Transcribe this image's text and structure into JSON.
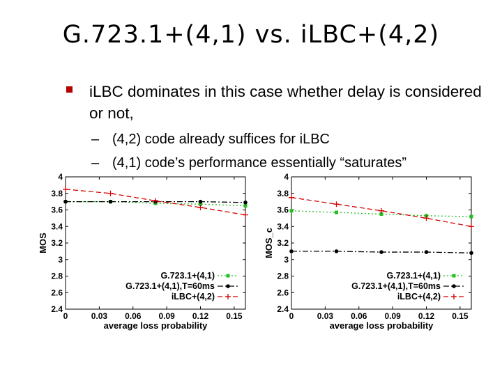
{
  "slide": {
    "title": "G.723.1+(4,1) vs. iLBC+(4,2)",
    "bullet": "iLBC dominates in this case whether delay is considered or not,",
    "subbullets": [
      "(4,2) code already suffices for iLBC",
      "(4,1) code’s performance essentially “saturates”"
    ]
  },
  "colors": {
    "green": "#1fbf1f",
    "black": "#000000",
    "red": "#d40000",
    "bullet": "#b30000"
  },
  "chart_data": [
    {
      "type": "line",
      "xlabel": "average loss probability",
      "ylabel": "MOS",
      "xlim": [
        0,
        0.16
      ],
      "ylim": [
        2.4,
        4
      ],
      "xticks": [
        0,
        0.03,
        0.06,
        0.09,
        0.12,
        0.15
      ],
      "xticklabels": [
        "0",
        "0.03",
        "0.06",
        "0.09",
        "0.12",
        "0.15"
      ],
      "yticks": [
        2.4,
        2.6,
        2.8,
        3,
        3.2,
        3.4,
        3.6,
        3.8,
        4
      ],
      "yticklabels": [
        "2.4",
        "2.6",
        "2.8",
        "3",
        "3.2",
        "3.4",
        "3.6",
        "3.8",
        "4"
      ],
      "legend": "bottom-right",
      "series": [
        {
          "name": "G.723.1+(4,1)",
          "color": "#1fbf1f",
          "dash": "dotted",
          "marker": "square",
          "x": [
            0,
            0.04,
            0.08,
            0.12,
            0.16
          ],
          "y": [
            3.7,
            3.7,
            3.68,
            3.67,
            3.65
          ]
        },
        {
          "name": "G.723.1+(4,1),T=60ms",
          "color": "#000000",
          "dash": "dashdot",
          "marker": "circle",
          "x": [
            0,
            0.04,
            0.08,
            0.12,
            0.16
          ],
          "y": [
            3.7,
            3.7,
            3.7,
            3.7,
            3.69
          ]
        },
        {
          "name": "iLBC+(4,2)",
          "color": "#d40000",
          "dash": "dashed",
          "marker": "plus",
          "x": [
            0,
            0.04,
            0.08,
            0.12,
            0.16
          ],
          "y": [
            3.85,
            3.8,
            3.71,
            3.63,
            3.54
          ]
        }
      ]
    },
    {
      "type": "line",
      "xlabel": "average loss probability",
      "ylabel": "MOS_c",
      "xlim": [
        0,
        0.16
      ],
      "ylim": [
        2.4,
        4
      ],
      "xticks": [
        0,
        0.03,
        0.06,
        0.09,
        0.12,
        0.15
      ],
      "xticklabels": [
        "0",
        "0.03",
        "0.06",
        "0.09",
        "0.12",
        "0.15"
      ],
      "yticks": [
        2.4,
        2.6,
        2.8,
        3,
        3.2,
        3.4,
        3.6,
        3.8,
        4
      ],
      "yticklabels": [
        "2.4",
        "2.6",
        "2.8",
        "3",
        "3.2",
        "3.4",
        "3.6",
        "3.8",
        "4"
      ],
      "legend": "bottom-right",
      "series": [
        {
          "name": "G.723.1+(4,1)",
          "color": "#1fbf1f",
          "dash": "dotted",
          "marker": "square",
          "x": [
            0,
            0.04,
            0.08,
            0.12,
            0.16
          ],
          "y": [
            3.59,
            3.57,
            3.55,
            3.53,
            3.52
          ]
        },
        {
          "name": "G.723.1+(4,1),T=60ms",
          "color": "#000000",
          "dash": "dashdot",
          "marker": "circle",
          "x": [
            0,
            0.04,
            0.08,
            0.12,
            0.16
          ],
          "y": [
            3.1,
            3.1,
            3.09,
            3.09,
            3.08
          ]
        },
        {
          "name": "iLBC+(4,2)",
          "color": "#d40000",
          "dash": "dashed",
          "marker": "plus",
          "x": [
            0,
            0.04,
            0.08,
            0.12,
            0.16
          ],
          "y": [
            3.75,
            3.67,
            3.59,
            3.5,
            3.4
          ]
        }
      ]
    }
  ]
}
